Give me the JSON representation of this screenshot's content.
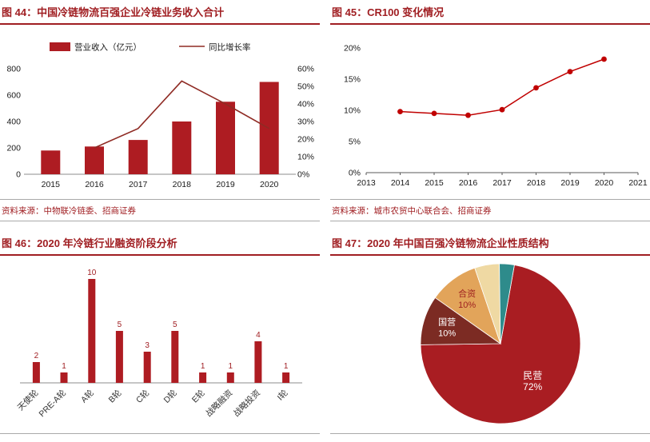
{
  "theme": {
    "bar_red": "#AE1C22",
    "title_red": "#A01E22",
    "line_red": "#8F2B24",
    "marker_red": "#C00000",
    "axis_gray": "#8C8C8C",
    "text_dark": "#1A1A1A"
  },
  "panels": {
    "fig44": {
      "title": "图 44：中国冷链物流百强企业冷链业务收入合计",
      "source": "资料来源：中物联冷链委、招商证券"
    },
    "fig45": {
      "title": "图 45：CR100 变化情况",
      "source": "资料来源：城市农贸中心联合会、招商证券"
    },
    "fig46": {
      "title": "图 46：2020 年冷链行业融资阶段分析",
      "source": ""
    },
    "fig47": {
      "title": "图 47：2020 年中国百强冷链物流企业性质结构",
      "source": ""
    }
  },
  "chart_data": [
    {
      "id": "fig44",
      "type": "bar",
      "title": "中国冷链物流百强企业冷链业务收入合计",
      "categories": [
        "2015",
        "2016",
        "2017",
        "2018",
        "2019",
        "2020"
      ],
      "series": [
        {
          "name": "营业收入（亿元）",
          "type": "bar",
          "axis": "left",
          "values": [
            180,
            210,
            260,
            400,
            550,
            700
          ]
        },
        {
          "name": "同比增长率",
          "type": "line",
          "axis": "right",
          "values": [
            null,
            15,
            26,
            53,
            40,
            26
          ]
        }
      ],
      "left_axis": {
        "min": 0,
        "max": 800,
        "ticks": [
          0,
          200,
          400,
          600,
          800
        ],
        "labels": [
          "0",
          "200",
          "400",
          "600",
          "800"
        ]
      },
      "right_axis": {
        "min": 0,
        "max": 60,
        "ticks": [
          0,
          10,
          20,
          30,
          40,
          50,
          60
        ],
        "labels": [
          "0%",
          "10%",
          "20%",
          "30%",
          "40%",
          "50%",
          "60%"
        ]
      },
      "legend_position": "top",
      "grid": false
    },
    {
      "id": "fig45",
      "type": "line",
      "title": "CR100 变化情况",
      "x_ticks": [
        "2013",
        "2014",
        "2015",
        "2016",
        "2017",
        "2018",
        "2019",
        "2020",
        "2021"
      ],
      "x_range": [
        2013,
        2021
      ],
      "series": [
        {
          "name": "CR100",
          "x": [
            2014,
            2015,
            2016,
            2017,
            2018,
            2019,
            2020
          ],
          "values": [
            9.8,
            9.5,
            9.2,
            10.1,
            13.6,
            16.2,
            18.2
          ]
        }
      ],
      "y_axis": {
        "min": 0,
        "max": 20,
        "ticks": [
          0,
          5,
          10,
          15,
          20
        ],
        "labels": [
          "0%",
          "5%",
          "10%",
          "15%",
          "20%"
        ]
      },
      "grid": false,
      "legend_position": "none"
    },
    {
      "id": "fig46",
      "type": "bar",
      "title": "2020 年冷链行业融资阶段分析",
      "categories": [
        "天使轮",
        "PRE-A轮",
        "A轮",
        "B轮",
        "C轮",
        "D轮",
        "E轮",
        "战略融资",
        "战略投资",
        "I轮"
      ],
      "values": [
        2,
        1,
        10,
        5,
        3,
        5,
        1,
        1,
        4,
        1
      ],
      "ylim": [
        0,
        10
      ],
      "value_labels": true,
      "xlabel": "",
      "ylabel": ""
    },
    {
      "id": "fig47",
      "type": "pie",
      "title": "2020 年中国百强冷链物流企业性质结构",
      "slices": [
        {
          "label": "民营",
          "value": 72,
          "color": "#A91D22",
          "text_color": "#FFFFFF",
          "show_label": true
        },
        {
          "label": "国营",
          "value": 10,
          "color": "#7C2B23",
          "text_color": "#FFFFFF",
          "show_label": true
        },
        {
          "label": "合资",
          "value": 10,
          "color": "#E2A45A",
          "text_color": "#9E1F1F",
          "show_label": true
        },
        {
          "label": "",
          "value": 5,
          "color": "#EFD9A3",
          "text_color": "#333333",
          "show_label": false
        },
        {
          "label": "",
          "value": 3,
          "color": "#2E8B8B",
          "text_color": "#333333",
          "show_label": false
        }
      ],
      "start_angle_deg": 10
    }
  ]
}
